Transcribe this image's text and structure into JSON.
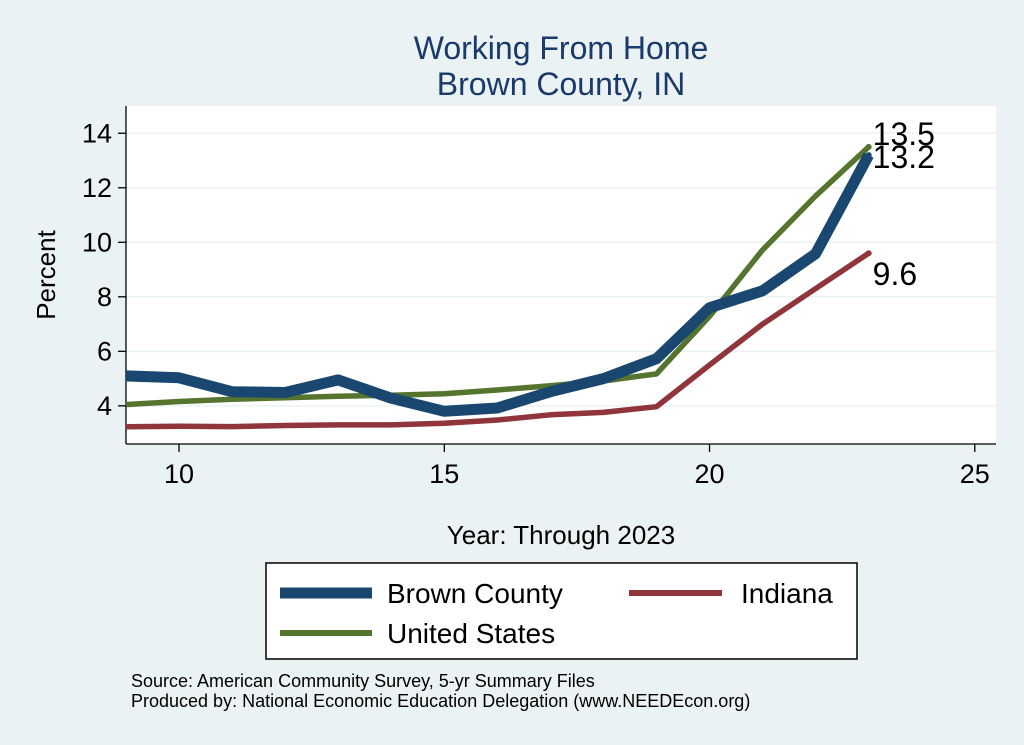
{
  "chart_data": {
    "type": "line",
    "title": [
      "Working From Home",
      "Brown County, IN"
    ],
    "xlabel": "Year: Through 2023",
    "ylabel": "Percent",
    "xlim": [
      9,
      25.4
    ],
    "ylim": [
      2.6,
      15.0
    ],
    "xticks": [
      10,
      15,
      20,
      25
    ],
    "yticks": [
      4,
      6,
      8,
      10,
      12,
      14
    ],
    "grid": true,
    "x": [
      9,
      10,
      11,
      12,
      13,
      14,
      15,
      16,
      17,
      18,
      19,
      20,
      21,
      22,
      23
    ],
    "series": [
      {
        "name": "Brown County",
        "color": "#1a476f",
        "values": [
          5.1,
          5.03,
          4.52,
          4.49,
          4.95,
          4.28,
          3.8,
          3.92,
          4.52,
          5.0,
          5.73,
          7.6,
          8.22,
          9.58,
          13.2
        ]
      },
      {
        "name": "Indiana",
        "color": "#90353b",
        "values": [
          3.23,
          3.25,
          3.24,
          3.28,
          3.3,
          3.3,
          3.36,
          3.48,
          3.67,
          3.76,
          3.97,
          5.5,
          7.0,
          8.3,
          9.6
        ]
      },
      {
        "name": "United States",
        "color": "#55752f",
        "values": [
          4.05,
          4.16,
          4.24,
          4.3,
          4.35,
          4.39,
          4.44,
          4.58,
          4.74,
          4.91,
          5.17,
          7.28,
          9.72,
          11.7,
          13.5
        ]
      }
    ],
    "end_labels": [
      "13.2",
      "9.6",
      "13.5"
    ],
    "legend_position": "bottom",
    "source_note": "Source: American Community Survey, 5-yr Summary Files",
    "producer_note": "Produced by: National Economic Education Delegation (www.NEEDEcon.org)"
  }
}
